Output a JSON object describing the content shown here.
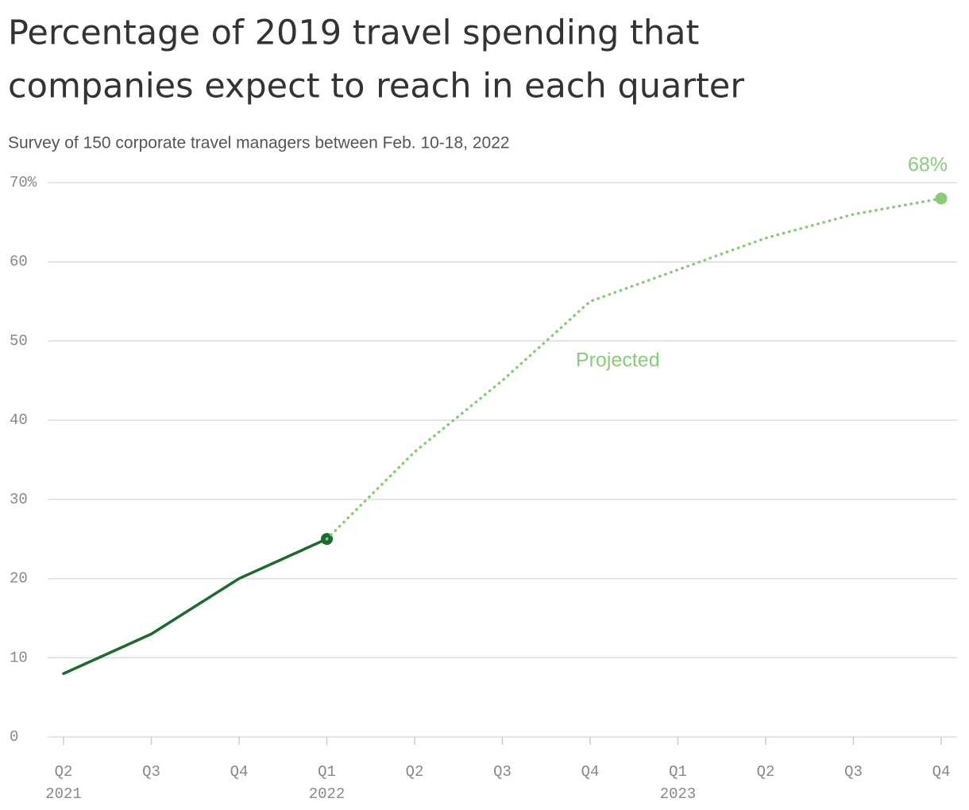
{
  "chart_data": {
    "type": "line",
    "title_lines": [
      "Percentage of 2019 travel spending that",
      "companies expect to reach in each quarter"
    ],
    "subtitle": "Survey of 150 corporate travel managers between Feb. 10-18, 2022",
    "categories": [
      "Q2",
      "Q3",
      "Q4",
      "Q1",
      "Q2",
      "Q3",
      "Q4",
      "Q1",
      "Q2",
      "Q3",
      "Q4"
    ],
    "years": [
      "2021",
      null,
      null,
      "2022",
      null,
      null,
      null,
      "2023",
      null,
      null,
      null
    ],
    "series": [
      {
        "color": "#1b6b2b",
        "dash": false,
        "values": [
          8,
          13,
          20,
          25,
          null,
          null,
          null,
          null,
          null,
          null,
          null
        ]
      },
      {
        "name": "Projected",
        "color": "#88cc77",
        "dash": true,
        "values": [
          null,
          null,
          null,
          25,
          36,
          45,
          55,
          59,
          63,
          66,
          68
        ],
        "value_labels": [
          null,
          null,
          null,
          null,
          null,
          null,
          null,
          null,
          null,
          null,
          "68%"
        ]
      }
    ],
    "ylim": [
      0,
      70
    ],
    "yticks": [
      0,
      10,
      20,
      30,
      40,
      50,
      60,
      {
        "value": 70,
        "label": "70%"
      }
    ],
    "grid": true
  }
}
